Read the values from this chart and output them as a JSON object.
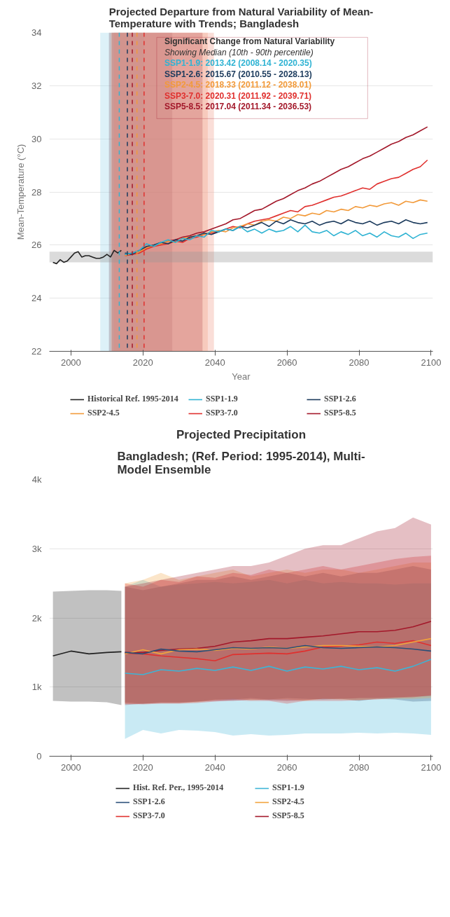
{
  "chart_data": [
    {
      "type": "line",
      "title": "Projected Departure from Natural Variability of Mean-Temperature with Trends; Bangladesh",
      "xlabel": "Year",
      "ylabel": "Mean-Temperature (°C)",
      "xlim": [
        1994,
        2100.5
      ],
      "ylim": [
        22,
        34
      ],
      "xticks": [
        2000,
        2020,
        2040,
        2060,
        2080,
        2100
      ],
      "yticks": [
        22,
        24,
        26,
        28,
        30,
        32,
        34
      ],
      "grid": "y",
      "legend": "bottom",
      "line_style": "solid",
      "x": [
        2015,
        2017,
        2019,
        2021,
        2023,
        2025,
        2027,
        2029,
        2031,
        2033,
        2035,
        2037,
        2039,
        2041,
        2043,
        2045,
        2047,
        2049,
        2051,
        2053,
        2055,
        2057,
        2059,
        2061,
        2063,
        2065,
        2067,
        2069,
        2071,
        2073,
        2075,
        2077,
        2079,
        2081,
        2083,
        2085,
        2087,
        2089,
        2091,
        2093,
        2095,
        2097,
        2099
      ],
      "series": [
        {
          "name": "Historical Ref. 1995-2014",
          "color": "#222222",
          "x": [
            1995,
            1996,
            1997,
            1998,
            1999,
            2000,
            2001,
            2002,
            2003,
            2004,
            2005,
            2006,
            2007,
            2008,
            2009,
            2010,
            2011,
            2012,
            2013,
            2014
          ],
          "values": [
            25.35,
            25.3,
            25.45,
            25.35,
            25.4,
            25.55,
            25.7,
            25.75,
            25.55,
            25.6,
            25.6,
            25.55,
            25.5,
            25.5,
            25.55,
            25.65,
            25.55,
            25.8,
            25.7,
            25.8
          ]
        },
        {
          "name": "SSP1-1.9",
          "color": "#2fb3d3",
          "values": [
            25.65,
            25.7,
            25.8,
            26.05,
            25.95,
            26.1,
            26.2,
            26.1,
            26.25,
            26.2,
            26.35,
            26.3,
            26.55,
            26.5,
            26.6,
            26.55,
            26.7,
            26.5,
            26.6,
            26.45,
            26.6,
            26.5,
            26.55,
            26.7,
            26.5,
            26.75,
            26.5,
            26.45,
            26.55,
            26.35,
            26.5,
            26.4,
            26.55,
            26.35,
            26.45,
            26.3,
            26.5,
            26.35,
            26.3,
            26.45,
            26.25,
            26.4,
            26.45
          ]
        },
        {
          "name": "SSP1-2.6",
          "color": "#1b3a5c",
          "values": [
            25.7,
            25.65,
            25.8,
            25.95,
            26.0,
            26.1,
            26.05,
            26.2,
            26.15,
            26.3,
            26.35,
            26.45,
            26.4,
            26.5,
            26.6,
            26.55,
            26.7,
            26.65,
            26.75,
            26.85,
            26.7,
            26.9,
            26.8,
            26.95,
            26.85,
            26.8,
            26.9,
            26.75,
            26.85,
            26.9,
            26.8,
            26.95,
            26.85,
            26.8,
            26.9,
            26.75,
            26.85,
            26.9,
            26.8,
            26.95,
            26.85,
            26.8,
            26.85
          ]
        },
        {
          "name": "SSP2-4.5",
          "color": "#f29a3a",
          "values": [
            25.6,
            25.7,
            25.75,
            25.9,
            26.0,
            26.05,
            26.15,
            26.1,
            26.25,
            26.3,
            26.35,
            26.4,
            26.5,
            26.55,
            26.5,
            26.65,
            26.7,
            26.8,
            26.75,
            26.9,
            26.95,
            26.9,
            27.05,
            27.0,
            27.15,
            27.1,
            27.2,
            27.15,
            27.3,
            27.25,
            27.35,
            27.3,
            27.45,
            27.4,
            27.5,
            27.45,
            27.55,
            27.6,
            27.5,
            27.65,
            27.6,
            27.7,
            27.65
          ]
        },
        {
          "name": "SSP3-7.0",
          "color": "#e0302e",
          "values": [
            25.6,
            25.65,
            25.7,
            25.85,
            25.95,
            26.0,
            26.05,
            26.15,
            26.1,
            26.25,
            26.3,
            26.4,
            26.45,
            26.5,
            26.6,
            26.7,
            26.65,
            26.8,
            26.9,
            26.95,
            27.0,
            27.1,
            27.2,
            27.3,
            27.25,
            27.45,
            27.5,
            27.6,
            27.7,
            27.8,
            27.85,
            27.95,
            28.05,
            28.15,
            28.1,
            28.3,
            28.4,
            28.5,
            28.55,
            28.7,
            28.85,
            28.95,
            29.2
          ]
        },
        {
          "name": "SSP5-8.5",
          "color": "#a3182a",
          "values": [
            25.65,
            25.7,
            25.8,
            25.9,
            26.0,
            26.05,
            26.15,
            26.2,
            26.3,
            26.35,
            26.45,
            26.5,
            26.6,
            26.7,
            26.8,
            26.95,
            27.0,
            27.15,
            27.3,
            27.35,
            27.5,
            27.65,
            27.75,
            27.9,
            28.05,
            28.15,
            28.3,
            28.4,
            28.55,
            28.7,
            28.85,
            28.95,
            29.1,
            29.25,
            29.35,
            29.5,
            29.65,
            29.8,
            29.9,
            30.05,
            30.15,
            30.3,
            30.45
          ]
        }
      ],
      "ref_lines": [
        {
          "axis": "x",
          "value": 2013.42,
          "color": "#2fb3d3",
          "line_style": "dashed"
        },
        {
          "axis": "x",
          "value": 2015.67,
          "color": "#1b3a5c",
          "line_style": "dashed"
        },
        {
          "axis": "x",
          "value": 2018.33,
          "color": "#f29a3a",
          "line_style": "dashed"
        },
        {
          "axis": "x",
          "value": 2020.31,
          "color": "#e0302e",
          "line_style": "dashed"
        },
        {
          "axis": "x",
          "value": 2017.04,
          "color": "#a3182a",
          "line_style": "dashed"
        }
      ],
      "bands": [
        {
          "axis": "x",
          "from": 2008.14,
          "to": 2020.35,
          "color": "#9fd8ea"
        },
        {
          "axis": "x",
          "from": 2010.55,
          "to": 2028.13,
          "color": "#8a6a78"
        },
        {
          "axis": "x",
          "from": 2011.12,
          "to": 2038.01,
          "color": "#f4a78a"
        },
        {
          "axis": "x",
          "from": 2011.92,
          "to": 2039.71,
          "color": "#f0a090"
        },
        {
          "axis": "x",
          "from": 2011.34,
          "to": 2036.53,
          "color": "#c06060"
        },
        {
          "axis": "y",
          "from": 25.35,
          "to": 25.75,
          "color": "#999999"
        }
      ],
      "annotations": [
        "Significant Change from Natural Variability",
        "Showing Median (10th - 90th percentile)",
        "SSP1-1.9: 2013.42 (2008.14 - 2020.35)",
        "SSP1-2.6: 2015.67 (2010.55 - 2028.13)",
        "SSP2-4.5: 2018.33 (2011.12 - 2038.01)",
        "SSP3-7.0: 2020.31 (2011.92 - 2039.71)",
        "SSP5-8.5: 2017.04 (2011.34 - 2036.53)"
      ]
    },
    {
      "type": "line",
      "title": "Projected Precipitation",
      "subtitle": "Bangladesh; (Ref. Period: 1995-2014), Multi-Model Ensemble",
      "xlim": [
        1994,
        2100.5
      ],
      "ylim": [
        0,
        4000
      ],
      "xticks": [
        2000,
        2020,
        2040,
        2060,
        2080,
        2100
      ],
      "yticks": [
        0,
        {
          "value": 1000,
          "label": "1k"
        },
        {
          "value": 2000,
          "label": "2k"
        },
        {
          "value": 3000,
          "label": "3k"
        },
        {
          "value": 4000,
          "label": "4k"
        }
      ],
      "grid": "y",
      "legend": "bottom",
      "line_style": "solid",
      "x": [
        2015,
        2020,
        2025,
        2030,
        2035,
        2040,
        2045,
        2050,
        2055,
        2060,
        2065,
        2070,
        2075,
        2080,
        2085,
        2090,
        2095,
        2100
      ],
      "series": [
        {
          "name": "Hist. Ref. Per., 1995-2014",
          "color": "#222222",
          "x": [
            1995,
            2000,
            2005,
            2010,
            2014
          ],
          "values": [
            1450,
            1520,
            1480,
            1500,
            1510
          ],
          "lower": [
            800,
            790,
            790,
            780,
            740
          ],
          "upper": [
            2380,
            2390,
            2400,
            2400,
            2390
          ]
        },
        {
          "name": "SSP1-1.9",
          "color": "#3db4d6",
          "values": [
            1200,
            1180,
            1250,
            1230,
            1270,
            1240,
            1290,
            1240,
            1300,
            1230,
            1290,
            1260,
            1300,
            1250,
            1280,
            1230,
            1300,
            1400
          ],
          "lower": [
            250,
            380,
            330,
            380,
            370,
            350,
            300,
            320,
            300,
            310,
            330,
            330,
            330,
            340,
            330,
            340,
            330,
            310
          ],
          "upper": [
            2450,
            2550,
            2450,
            2480,
            2500,
            2520,
            2500,
            2520,
            2550,
            2500,
            2550,
            2500,
            2520,
            2500,
            2500,
            2480,
            2500,
            2500
          ]
        },
        {
          "name": "SSP1-2.6",
          "color": "#2a4f78",
          "values": [
            1500,
            1480,
            1550,
            1520,
            1510,
            1540,
            1570,
            1560,
            1570,
            1560,
            1600,
            1570,
            1560,
            1570,
            1580,
            1570,
            1550,
            1520
          ],
          "lower": [
            780,
            760,
            780,
            780,
            790,
            820,
            820,
            840,
            820,
            840,
            830,
            820,
            830,
            800,
            830,
            820,
            790,
            800
          ],
          "upper": [
            2450,
            2400,
            2450,
            2500,
            2550,
            2550,
            2600,
            2550,
            2600,
            2650,
            2600,
            2650,
            2600,
            2650,
            2650,
            2700,
            2750,
            2700
          ]
        },
        {
          "name": "SSP2-4.5",
          "color": "#f2a33c",
          "values": [
            1480,
            1540,
            1480,
            1540,
            1550,
            1530,
            1560,
            1550,
            1580,
            1560,
            1580,
            1600,
            1600,
            1590,
            1580,
            1600,
            1650,
            1700
          ],
          "lower": [
            760,
            760,
            770,
            770,
            780,
            810,
            830,
            810,
            820,
            820,
            800,
            830,
            820,
            810,
            830,
            830,
            830,
            840
          ],
          "upper": [
            2500,
            2550,
            2650,
            2550,
            2600,
            2650,
            2700,
            2600,
            2650,
            2700,
            2650,
            2700,
            2700,
            2650,
            2700,
            2750,
            2800,
            2800
          ]
        },
        {
          "name": "SSP3-7.0",
          "color": "#e0302e",
          "values": [
            1490,
            1480,
            1450,
            1430,
            1410,
            1380,
            1470,
            1480,
            1490,
            1480,
            1520,
            1580,
            1590,
            1610,
            1650,
            1630,
            1670,
            1600
          ],
          "lower": [
            760,
            750,
            760,
            760,
            770,
            790,
            810,
            800,
            800,
            760,
            800,
            800,
            800,
            810,
            820,
            840,
            850,
            880
          ],
          "upper": [
            2500,
            2450,
            2550,
            2520,
            2600,
            2580,
            2650,
            2620,
            2700,
            2650,
            2700,
            2750,
            2700,
            2750,
            2800,
            2850,
            2880,
            2900
          ]
        },
        {
          "name": "SSP5-8.5",
          "color": "#a3182a",
          "values": [
            1500,
            1500,
            1530,
            1550,
            1560,
            1590,
            1650,
            1670,
            1700,
            1700,
            1720,
            1740,
            1770,
            1800,
            1800,
            1820,
            1870,
            1950
          ],
          "lower": [
            740,
            760,
            770,
            770,
            790,
            800,
            800,
            820,
            810,
            800,
            810,
            830,
            830,
            840,
            840,
            850,
            860,
            870
          ],
          "upper": [
            2450,
            2500,
            2550,
            2600,
            2650,
            2700,
            2750,
            2750,
            2800,
            2900,
            3000,
            3050,
            3050,
            3150,
            3250,
            3300,
            3450,
            3350
          ]
        }
      ]
    }
  ]
}
